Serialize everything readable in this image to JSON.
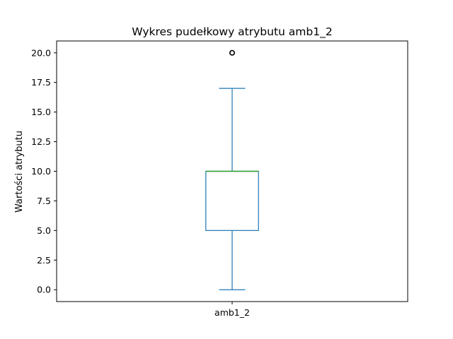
{
  "chart_data": {
    "type": "box",
    "title": "Wykres pudełkowy atrybutu amb1_2",
    "xlabel": "",
    "ylabel": "Wartości atrybutu",
    "categories": [
      "amb1_2"
    ],
    "y_ticks": [
      "0.0",
      "2.5",
      "5.0",
      "7.5",
      "10.0",
      "12.5",
      "15.0",
      "17.5",
      "20.0"
    ],
    "ylim": [
      -1.0,
      21.0
    ],
    "grid": false,
    "boxes": [
      {
        "category": "amb1_2",
        "whisker_low": 0.0,
        "q1": 5.0,
        "median": 10.0,
        "q3": 10.0,
        "whisker_high": 17.0,
        "outliers": [
          20.0
        ]
      }
    ],
    "colors": {
      "box": "#1f77b4",
      "median": "#2ca02c",
      "outlier": "#000000"
    }
  }
}
